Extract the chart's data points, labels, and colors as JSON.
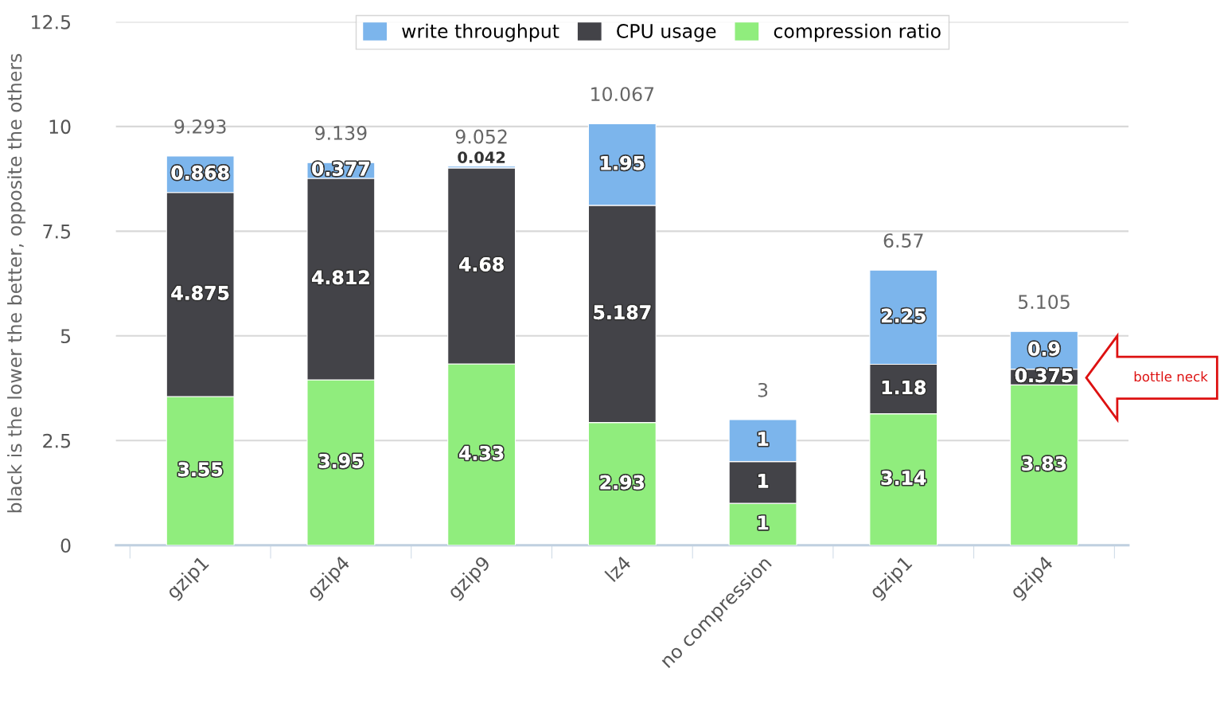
{
  "chart_data": {
    "type": "bar",
    "stacked": true,
    "ylabel": "black is the lower the better, opposite the others",
    "categories": [
      "gzip1",
      "gzip4",
      "gzip9",
      "lz4",
      "no compression",
      "gzip1",
      "gzip4"
    ],
    "series": [
      {
        "name": "compression ratio",
        "color": "#90ed7d",
        "values": [
          3.55,
          3.95,
          4.33,
          2.93,
          1,
          3.14,
          3.83
        ]
      },
      {
        "name": "CPU usage",
        "color": "#434348",
        "values": [
          4.875,
          4.812,
          4.68,
          5.187,
          1,
          1.18,
          0.375
        ]
      },
      {
        "name": "write throughput",
        "color": "#7cb5ec",
        "values": [
          0.868,
          0.377,
          0.042,
          1.95,
          1,
          2.25,
          0.9
        ]
      }
    ],
    "totals": [
      "9.293",
      "9.139",
      "9.052",
      "10.067",
      "3",
      "6.57",
      "5.105"
    ],
    "data_labels": true,
    "ylim": [
      0,
      12.5
    ],
    "yticks": [
      0,
      2.5,
      5,
      7.5,
      10,
      12.5
    ],
    "grid": "y",
    "legend": "top",
    "annotations": [
      "bottle neck"
    ]
  }
}
